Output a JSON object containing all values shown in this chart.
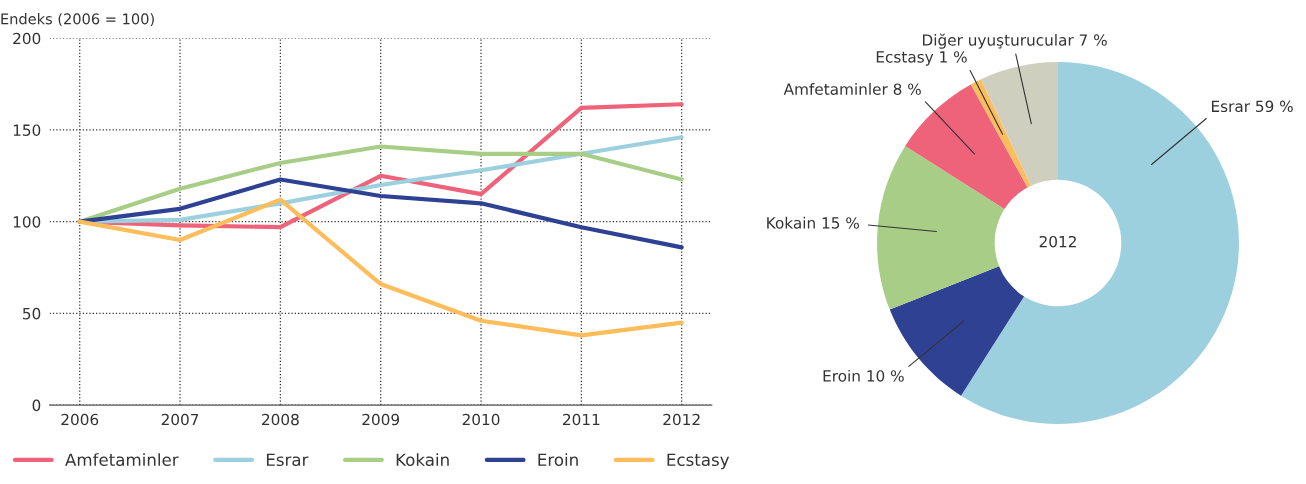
{
  "chart_data": [
    {
      "type": "line",
      "ylabel": "Endeks (2006 = 100)",
      "x": [
        2006,
        2007,
        2008,
        2009,
        2010,
        2011,
        2012
      ],
      "series": [
        {
          "name": "Amfetaminler",
          "color": "#ee627a",
          "values": [
            100,
            98,
            97,
            125,
            115,
            162,
            164
          ]
        },
        {
          "name": "Esrar",
          "color": "#9dd0df",
          "values": [
            100,
            101,
            110,
            120,
            128,
            137,
            146
          ]
        },
        {
          "name": "Kokain",
          "color": "#a8cd86",
          "values": [
            100,
            118,
            132,
            141,
            137,
            137,
            123
          ]
        },
        {
          "name": "Eroin",
          "color": "#2e4193",
          "values": [
            100,
            107,
            123,
            114,
            110,
            97,
            86
          ]
        },
        {
          "name": "Ecstasy",
          "color": "#fdbd5a",
          "values": [
            100,
            90,
            112,
            66,
            46,
            38,
            45
          ]
        }
      ],
      "xlim": [
        2005.7,
        2012.3
      ],
      "xticks": [
        2006,
        2007,
        2008,
        2009,
        2010,
        2011,
        2012
      ],
      "ylim": [
        0,
        200
      ],
      "yticks": [
        0,
        50,
        100,
        150,
        200
      ],
      "grid": true,
      "legend": "bottom",
      "marker": "none",
      "line_style": "solid"
    },
    {
      "type": "donut",
      "categories": [
        "Esrar",
        "Eroin",
        "Kokain",
        "Amfetaminler",
        "Ecstasy",
        "Diğer uyuşturucular"
      ],
      "values": [
        59,
        10,
        15,
        8,
        1,
        7
      ],
      "value_labels": [
        "59 %",
        "10 %",
        "15 %",
        "8 %",
        "1 %",
        "7 %"
      ],
      "colors": [
        "#9dd0df",
        "#2e4193",
        "#a8cd86",
        "#ee627a",
        "#fdbd5a",
        "#cfcfbf"
      ],
      "annotations": [
        "2012"
      ]
    }
  ]
}
